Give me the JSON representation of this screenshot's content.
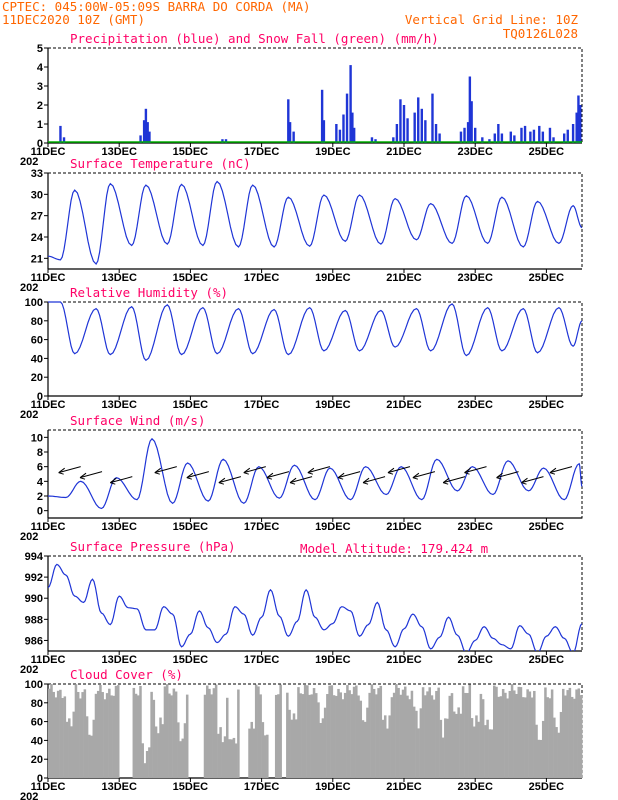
{
  "header": {
    "line1": "CPTEC:  045:00W-05:09S  BARRA DO CORDA (MA)",
    "line2": "11DEC2020 10Z (GMT)",
    "grid_note": "Vertical Grid Line: 10Z",
    "code": "TQ0126L028",
    "altitude": "Model Altitude: 179.424 m"
  },
  "colors": {
    "header": "#ff6600",
    "title": "#ff0066",
    "line": "#1f35d6",
    "snow": "#00b000",
    "cloud": "#a8a8a8"
  },
  "x_axis": {
    "labels": [
      "11DEC",
      "13DEC",
      "15DEC",
      "17DEC",
      "19DEC",
      "21DEC",
      "23DEC",
      "25DEC"
    ],
    "range_days": [
      0,
      15
    ],
    "year_fragment": "202"
  },
  "chart_data": [
    {
      "type": "bar",
      "title": "Precipitation (blue) and Snow Fall (green) (mm/h)",
      "ylim": [
        0,
        5
      ],
      "yticks": [
        "0",
        "1",
        "2",
        "3",
        "4",
        "5"
      ],
      "series": [
        {
          "name": "Precipitation",
          "points": [
            [
              0.35,
              0.9
            ],
            [
              0.45,
              0.3
            ],
            [
              2.6,
              0.4
            ],
            [
              2.7,
              1.2
            ],
            [
              2.75,
              1.8
            ],
            [
              2.8,
              1.1
            ],
            [
              2.85,
              0.6
            ],
            [
              4.9,
              0.2
            ],
            [
              5.0,
              0.2
            ],
            [
              6.75,
              2.3
            ],
            [
              6.8,
              1.1
            ],
            [
              6.9,
              0.6
            ],
            [
              7.7,
              2.8
            ],
            [
              7.75,
              1.2
            ],
            [
              8.1,
              1.0
            ],
            [
              8.2,
              0.7
            ],
            [
              8.3,
              1.5
            ],
            [
              8.4,
              2.6
            ],
            [
              8.5,
              4.1
            ],
            [
              8.55,
              1.6
            ],
            [
              8.6,
              0.8
            ],
            [
              9.1,
              0.3
            ],
            [
              9.2,
              0.2
            ],
            [
              9.7,
              0.3
            ],
            [
              9.8,
              1.0
            ],
            [
              9.9,
              2.3
            ],
            [
              10.0,
              2.0
            ],
            [
              10.1,
              1.3
            ],
            [
              10.3,
              1.6
            ],
            [
              10.4,
              2.4
            ],
            [
              10.5,
              1.8
            ],
            [
              10.6,
              1.2
            ],
            [
              10.8,
              2.6
            ],
            [
              10.9,
              1.0
            ],
            [
              11.0,
              0.5
            ],
            [
              11.6,
              0.6
            ],
            [
              11.7,
              0.8
            ],
            [
              11.8,
              1.1
            ],
            [
              11.85,
              3.5
            ],
            [
              11.9,
              2.2
            ],
            [
              12.0,
              0.8
            ],
            [
              12.2,
              0.3
            ],
            [
              12.4,
              0.2
            ],
            [
              12.55,
              0.5
            ],
            [
              12.65,
              1.0
            ],
            [
              12.75,
              0.5
            ],
            [
              13.0,
              0.6
            ],
            [
              13.1,
              0.4
            ],
            [
              13.3,
              0.8
            ],
            [
              13.4,
              0.9
            ],
            [
              13.55,
              0.6
            ],
            [
              13.65,
              0.7
            ],
            [
              13.8,
              0.9
            ],
            [
              13.9,
              0.6
            ],
            [
              14.1,
              0.8
            ],
            [
              14.2,
              0.3
            ],
            [
              14.5,
              0.5
            ],
            [
              14.6,
              0.7
            ],
            [
              14.75,
              1.0
            ],
            [
              14.85,
              1.6
            ],
            [
              14.9,
              2.5
            ],
            [
              14.95,
              2.0
            ]
          ]
        },
        {
          "name": "Snow Fall",
          "points": []
        }
      ]
    },
    {
      "type": "line",
      "title": "Surface Temperature (nC)",
      "ylim": [
        19.5,
        33
      ],
      "yticks": [
        "21",
        "24",
        "27",
        "30",
        "33"
      ],
      "min": [
        20.8,
        20.2,
        22.8,
        23.0,
        22.8,
        22.6,
        22.6,
        22.7,
        23.4,
        23.0,
        23.6,
        23.1,
        23.1,
        22.6,
        23.1,
        22.9
      ],
      "max": [
        30.6,
        31.5,
        31.3,
        31.4,
        31.8,
        31.3,
        29.6,
        29.9,
        29.9,
        29.4,
        28.7,
        29.8,
        29.6,
        29.0,
        28.4,
        28.2
      ],
      "last": 25.3
    },
    {
      "type": "line",
      "title": "Relative Humidity (%)",
      "ylim": [
        0,
        100
      ],
      "yticks": [
        "0",
        "20",
        "40",
        "60",
        "80",
        "100"
      ],
      "max": [
        100,
        93,
        95,
        97,
        94,
        93,
        92,
        94,
        91,
        91,
        93,
        98,
        94,
        93,
        94,
        96
      ],
      "min": [
        45,
        44,
        38,
        44,
        45,
        45,
        44,
        48,
        48,
        52,
        48,
        43,
        48,
        46,
        53,
        57
      ],
      "last": 80
    },
    {
      "type": "line",
      "title": "Surface Wind (m/s)",
      "ylim": [
        -1,
        11
      ],
      "yticks": [
        "0",
        "2",
        "4",
        "6",
        "8",
        "10"
      ],
      "min": [
        1.8,
        0.3,
        1.5,
        1.0,
        1.3,
        1.0,
        1.7,
        1.5,
        1.5,
        2.2,
        1.5,
        2.7,
        2.2,
        2.7,
        1.5,
        2.0
      ],
      "max": [
        4.0,
        4.5,
        9.8,
        6.5,
        7.0,
        6.0,
        6.2,
        5.8,
        6.0,
        6.0,
        7.0,
        6.0,
        6.8,
        5.8,
        6.4,
        5.3
      ],
      "last": 3.3,
      "arrows_at_days": [
        0.3,
        0.9,
        1.75,
        3.0,
        3.9,
        4.8,
        5.5,
        6.15,
        6.8,
        7.3,
        8.15,
        8.85,
        9.55,
        10.25,
        11.1,
        11.7,
        12.6,
        13.3,
        14.1
      ]
    },
    {
      "type": "line",
      "title": "Surface Pressure (hPa)",
      "ylim": [
        985,
        994
      ],
      "yticks": [
        "986",
        "988",
        "990",
        "992",
        "994"
      ],
      "trace": [
        [
          0,
          991.0
        ],
        [
          0.25,
          993.2
        ],
        [
          0.5,
          992.2
        ],
        [
          0.75,
          990.2
        ],
        [
          1.0,
          989.6
        ],
        [
          1.25,
          991.8
        ],
        [
          1.5,
          988.6
        ],
        [
          1.75,
          987.5
        ],
        [
          2.0,
          990.2
        ],
        [
          2.25,
          989.1
        ],
        [
          2.5,
          989.0
        ],
        [
          2.75,
          987.0
        ],
        [
          3.0,
          987.0
        ],
        [
          3.25,
          989.2
        ],
        [
          3.5,
          988.5
        ],
        [
          3.75,
          985.4
        ],
        [
          4.0,
          986.6
        ],
        [
          4.25,
          988.8
        ],
        [
          4.5,
          987.2
        ],
        [
          4.75,
          985.8
        ],
        [
          5.0,
          986.6
        ],
        [
          5.25,
          989.2
        ],
        [
          5.5,
          988.5
        ],
        [
          5.75,
          986.5
        ],
        [
          6.0,
          988.2
        ],
        [
          6.25,
          990.8
        ],
        [
          6.5,
          988.3
        ],
        [
          6.75,
          986.4
        ],
        [
          7.0,
          987.8
        ],
        [
          7.25,
          990.8
        ],
        [
          7.5,
          988.2
        ],
        [
          7.75,
          987.0
        ],
        [
          8.0,
          987.6
        ],
        [
          8.25,
          989.2
        ],
        [
          8.5,
          988.8
        ],
        [
          8.75,
          986.4
        ],
        [
          9.0,
          987.5
        ],
        [
          9.25,
          989.6
        ],
        [
          9.5,
          987.0
        ],
        [
          9.75,
          985.4
        ],
        [
          10.0,
          987.1
        ],
        [
          10.25,
          988.5
        ],
        [
          10.5,
          987.3
        ],
        [
          10.75,
          985.2
        ],
        [
          11.0,
          986.3
        ],
        [
          11.25,
          988.2
        ],
        [
          11.5,
          986.5
        ],
        [
          11.75,
          984.8
        ],
        [
          12.0,
          986.0
        ],
        [
          12.25,
          987.3
        ],
        [
          12.5,
          986.2
        ],
        [
          12.75,
          985.6
        ],
        [
          13.0,
          985.2
        ],
        [
          13.25,
          987.4
        ],
        [
          13.5,
          986.6
        ],
        [
          13.75,
          984.8
        ],
        [
          14.0,
          986.4
        ],
        [
          14.25,
          987.3
        ],
        [
          14.5,
          986.2
        ],
        [
          14.75,
          984.8
        ],
        [
          15.0,
          987.6
        ]
      ]
    },
    {
      "type": "bar",
      "title": "Cloud Cover (%)",
      "ylim": [
        0,
        100
      ],
      "yticks": [
        "0",
        "20",
        "40",
        "60",
        "80",
        "100"
      ],
      "gaps": [
        [
          2.0,
          2.35
        ],
        [
          3.95,
          4.35
        ],
        [
          5.4,
          5.6
        ],
        [
          6.2,
          6.35
        ],
        [
          6.55,
          6.7
        ]
      ],
      "base_level": 92,
      "dip_days": [
        0.6,
        1.2,
        2.75,
        3.1,
        3.75,
        4.9,
        5.2,
        5.7,
        6.1,
        6.9,
        7.7,
        8.9,
        9.5,
        10.4,
        11.1,
        11.5,
        12.0,
        12.4,
        13.8,
        14.3
      ],
      "dip_levels": [
        55,
        45,
        20,
        50,
        40,
        40,
        35,
        50,
        45,
        60,
        60,
        60,
        55,
        60,
        50,
        65,
        55,
        50,
        40,
        50
      ]
    }
  ]
}
